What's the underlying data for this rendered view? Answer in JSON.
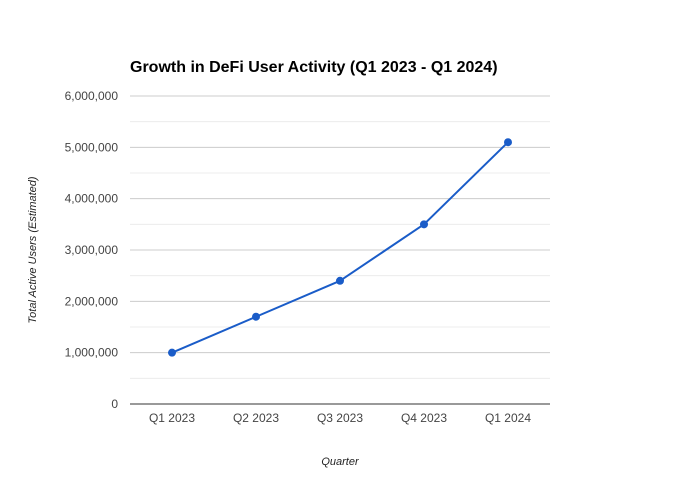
{
  "chart_data": {
    "type": "line",
    "title": "Growth in DeFi User Activity (Q1 2023 - Q1 2024)",
    "xlabel": "Quarter",
    "ylabel": "Total Active Users (Estimated)",
    "categories": [
      "Q1 2023",
      "Q2 2023",
      "Q3 2023",
      "Q4 2023",
      "Q1 2024"
    ],
    "series": [
      {
        "values": [
          1000000,
          1700000,
          2400000,
          3500000,
          5100000
        ],
        "color": "#1a5cc8"
      }
    ],
    "ylim": [
      0,
      6000000
    ],
    "yticks": [
      0,
      1000000,
      2000000,
      3000000,
      4000000,
      5000000,
      6000000
    ],
    "ytick_labels": [
      "0",
      "1,000,000",
      "2,000,000",
      "3,000,000",
      "4,000,000",
      "5,000,000",
      "6,000,000"
    ],
    "grid": true,
    "legend": "none"
  }
}
